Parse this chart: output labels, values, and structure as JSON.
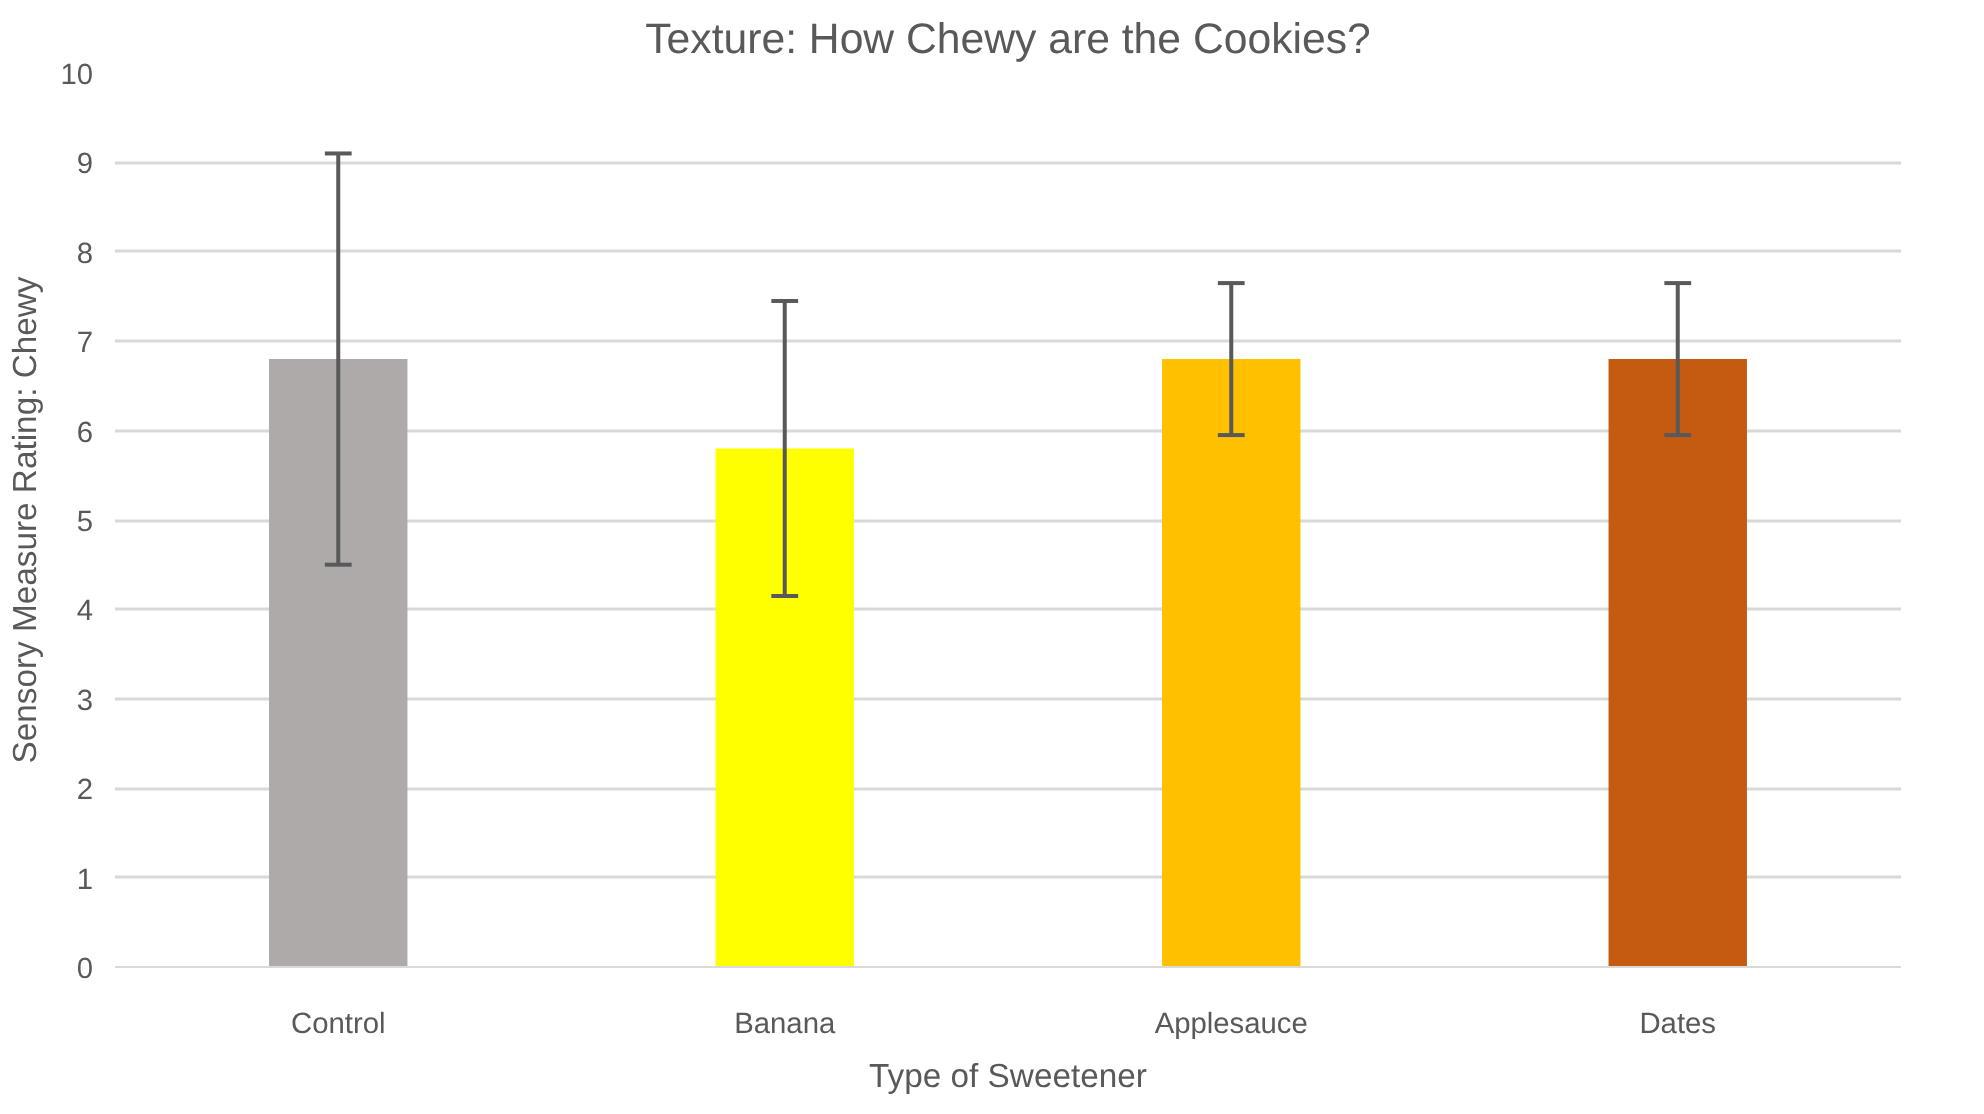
{
  "chart_data": {
    "type": "bar",
    "title": "Texture: How Chewy are the Cookies?",
    "xlabel": "Type of Sweetener",
    "ylabel": "Sensory Measure Rating: Chewy",
    "categories": [
      "Control",
      "Banana",
      "Applesauce",
      "Dates"
    ],
    "values": [
      6.8,
      5.8,
      6.8,
      6.8
    ],
    "colors": [
      "#aeaaaa",
      "#ffff00",
      "#ffc000",
      "#c55a11"
    ],
    "errors": [
      2.3,
      1.65,
      0.85,
      0.85
    ],
    "ylim": [
      0,
      10
    ],
    "yticks": [
      0,
      1,
      2,
      3,
      4,
      5,
      6,
      7,
      8,
      9,
      10
    ],
    "grid": "y"
  }
}
